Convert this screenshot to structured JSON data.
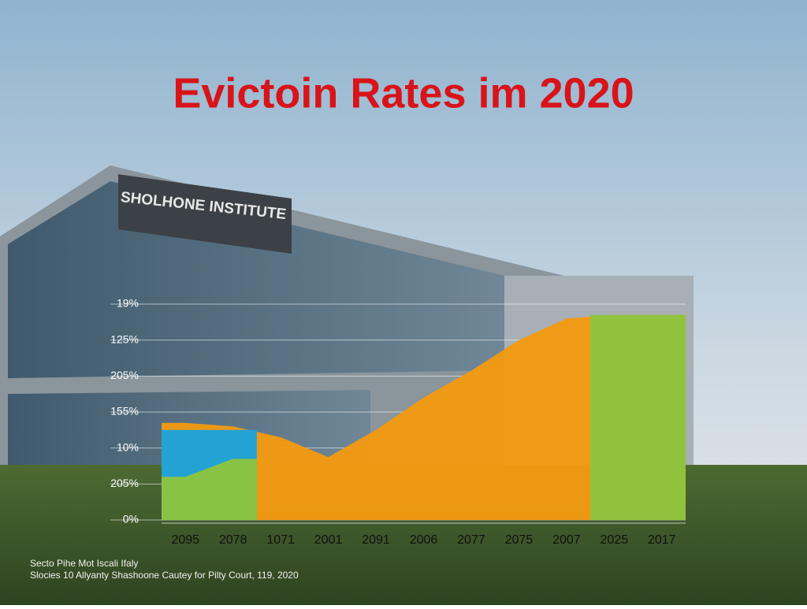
{
  "chart_data": {
    "type": "area",
    "title": "Evictoin Rates im 2020",
    "sign": "SHOLHONE INSTITUTE",
    "categories": [
      "2095",
      "2078",
      "1071",
      "2001",
      "2091",
      "2006",
      "2077",
      "2075",
      "2007",
      "2025",
      "2017"
    ],
    "y_axis_labels": [
      "0%",
      "205%",
      "10%",
      "155%",
      "205%",
      "125%",
      "19%"
    ],
    "ylim": [
      0,
      6
    ],
    "yticks": [
      0,
      1,
      2,
      3,
      4,
      5,
      6
    ],
    "grid": true,
    "series": [
      {
        "color": "#f39a12",
        "values": [
          2.7,
          2.6,
          2.3,
          1.75,
          2.5,
          3.4,
          4.15,
          5.0,
          5.6,
          5.7,
          5.7
        ]
      },
      {
        "color": "#1aa3dd",
        "values": [
          2.5,
          2.5,
          null,
          null,
          null,
          null,
          null,
          null,
          null,
          null,
          null
        ]
      },
      {
        "color": "#8cc43f",
        "values": [
          1.2,
          1.7,
          null,
          null,
          null,
          null,
          null,
          null,
          null,
          5.7,
          5.7
        ]
      }
    ],
    "footnotes": [
      "Secto Pihe Mot Iscali Ifaly",
      "Slocies 10 Allyanty Shashoone Cautey for Pilty Court, 119, 2020"
    ]
  }
}
